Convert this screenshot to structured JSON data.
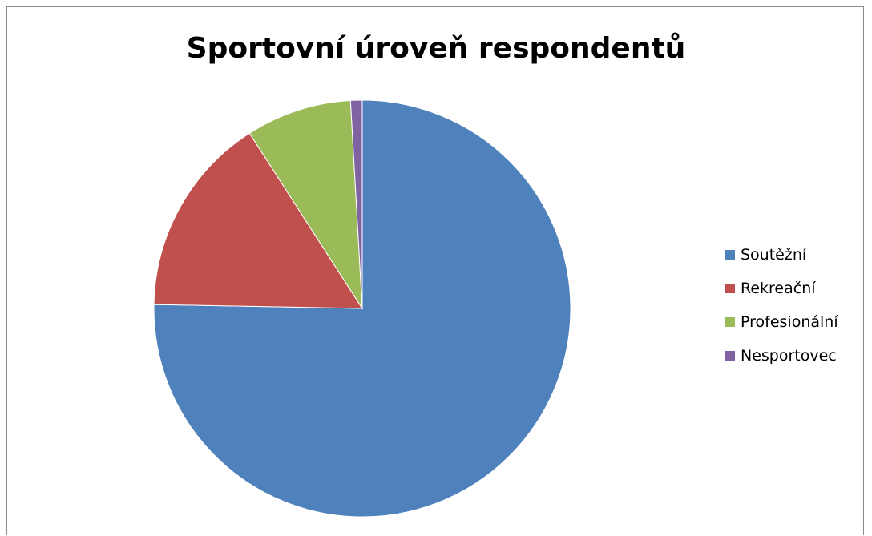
{
  "chart_data": {
    "type": "pie",
    "title": "Sportovní úroveň respondentů",
    "categories": [
      "Soutěžní",
      "Rekreační",
      "Profesionální",
      "Nesportovec"
    ],
    "values": [
      75.3,
      15.6,
      8.2,
      0.9
    ],
    "colors": [
      "#4F81BD",
      "#C0504D",
      "#9BBB59",
      "#8064A2"
    ],
    "legend_position": "right",
    "start_angle_deg": 0,
    "direction": "clockwise"
  }
}
